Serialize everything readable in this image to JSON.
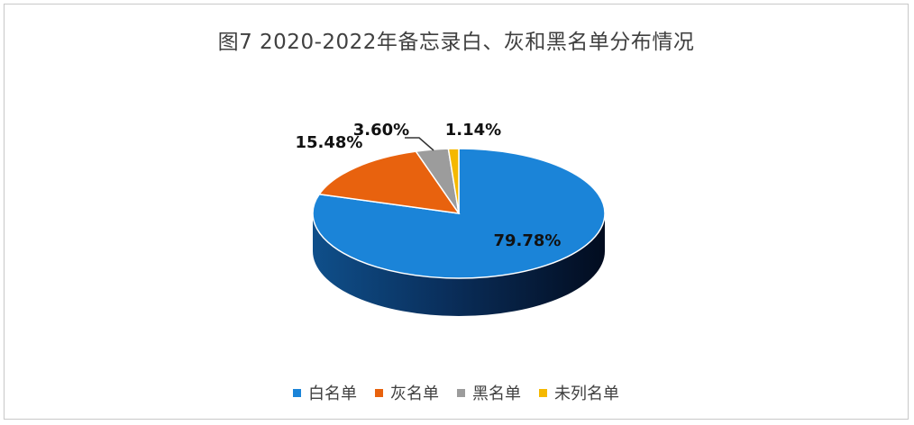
{
  "chart_data": {
    "type": "pie",
    "title": "图7   2020-2022年备忘录白、灰和黑名单分布情况",
    "slices": [
      {
        "name": "白名单",
        "value": 79.78,
        "label": "79.78%",
        "color": "#1B84D8"
      },
      {
        "name": "灰名单",
        "value": 15.48,
        "label": "15.48%",
        "color": "#E8620E"
      },
      {
        "name": "黑名单",
        "value": 3.6,
        "label": "3.60%",
        "color": "#9C9C9C"
      },
      {
        "name": "未列名单",
        "value": 1.14,
        "label": "1.14%",
        "color": "#F5B800"
      }
    ],
    "legend_position": "bottom",
    "style": "3d-pie"
  }
}
